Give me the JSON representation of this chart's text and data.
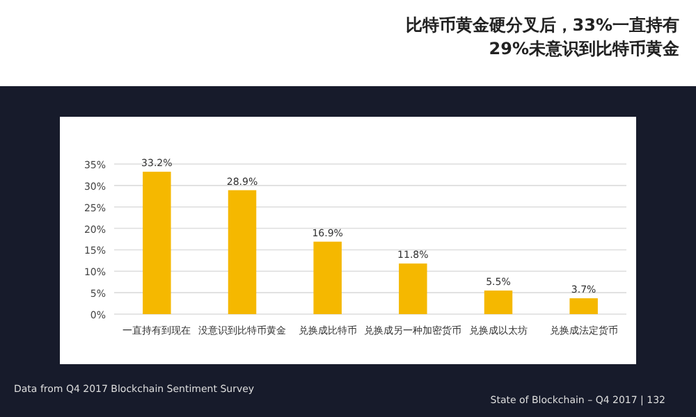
{
  "chart_data": {
    "type": "bar",
    "title": "比特币黄金硬分叉后，33%一直持有\n29%未意识到比特币黄金",
    "categories": [
      "一直持有到现在",
      "没意识到比特币黄金",
      "兑换成比特币",
      "兑换成另一种加密货币",
      "兑换成以太坊",
      "兑换成法定货币"
    ],
    "values": [
      33.2,
      28.9,
      16.9,
      11.8,
      5.5,
      3.7
    ],
    "color": "#f5b800",
    "ylim": [
      0,
      35
    ],
    "yticks": [
      {
        "value": 0,
        "label": "0%"
      },
      {
        "value": 5,
        "label": "5%"
      },
      {
        "value": 10,
        "label": "10%"
      },
      {
        "value": 15,
        "label": "15%"
      },
      {
        "value": 20,
        "label": "20%"
      },
      {
        "value": 25,
        "label": "25%"
      },
      {
        "value": 30,
        "label": "30%"
      },
      {
        "value": 35,
        "label": "35%"
      }
    ],
    "grid": "y",
    "value_labels": [
      "33.2%",
      "28.9%",
      "16.9%",
      "11.8%",
      "5.5%",
      "3.7%"
    ],
    "annotations": [
      "Data from Q4 2017 Blockchain Sentiment Survey",
      "State of Blockchain – Q4 2017  |  132"
    ]
  }
}
